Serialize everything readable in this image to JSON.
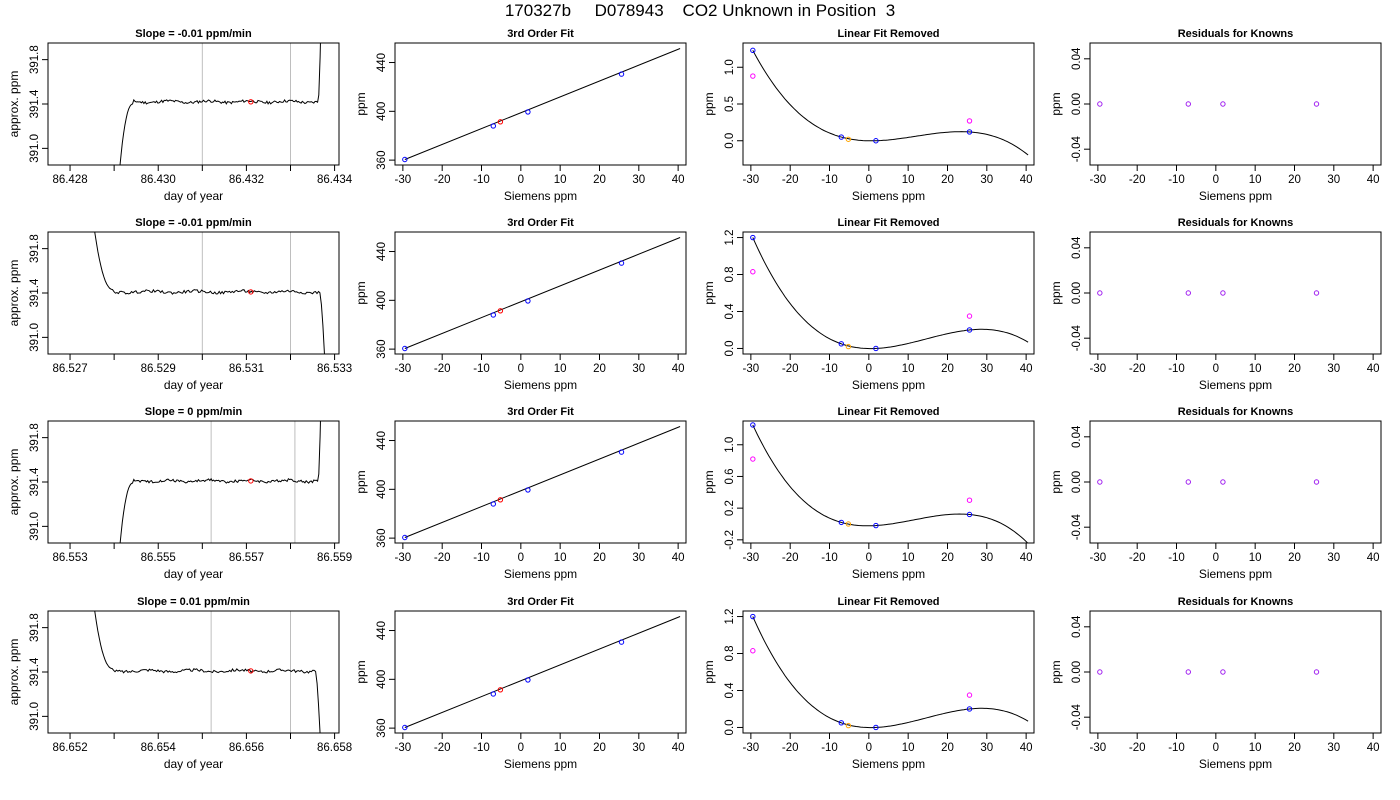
{
  "page_title": "170327b     D078943    CO2 Unknown in Position  3",
  "colors": {
    "trace": "#000000",
    "marker_lines": "#bebebe",
    "point_red": "#ff0000",
    "point_blue": "#0000ff",
    "point_magenta": "#ff00ff",
    "point_orange": "#ffa500",
    "point_purple": "#a020f0"
  },
  "chart_data": [
    {
      "type": "line",
      "row": 1,
      "col": 1,
      "title": "Slope =  -0.01  ppm/min",
      "xlabel": "day of year",
      "ylabel": "approx. ppm",
      "xlim": [
        86.4275,
        86.4341
      ],
      "ylim": [
        390.85,
        391.95
      ],
      "xticks": [
        "86.428",
        "86.430",
        "86.432",
        "86.434"
      ],
      "xtick_values": [
        86.428,
        86.43,
        86.432,
        86.434
      ],
      "yticks": [
        "391.0",
        "391.4",
        "391.8"
      ],
      "ytick_values": [
        391.0,
        391.4,
        391.8
      ],
      "minor_xticks": [
        86.429,
        86.431,
        86.433
      ],
      "vlines": [
        86.431,
        86.433
      ],
      "trace": {
        "start": 86.4291,
        "end": 86.4337,
        "low_start": true,
        "low_end": false,
        "level": 391.42
      },
      "point": {
        "x": 86.4321,
        "y": 391.42
      }
    },
    {
      "type": "line",
      "row": 1,
      "col": 2,
      "title": "3rd Order Fit",
      "xlabel": "Siemens ppm",
      "ylabel": "ppm",
      "xlim": [
        -32,
        42
      ],
      "ylim": [
        356,
        456
      ],
      "xticks": [
        "-30",
        "-20",
        "-10",
        "0",
        "10",
        "20",
        "30",
        "40"
      ],
      "xtick_values": [
        -30,
        -20,
        -10,
        0,
        10,
        20,
        30,
        40
      ],
      "yticks": [
        "360",
        "400",
        "440"
      ],
      "ytick_values": [
        360,
        400,
        440
      ],
      "fit_line": [
        [
          -29.5,
          360.5
        ],
        [
          40.5,
          451.5
        ]
      ],
      "knowns": [
        {
          "x": -29.5,
          "y": 360.5
        },
        {
          "x": -7,
          "y": 388
        },
        {
          "x": 1.8,
          "y": 399.5
        },
        {
          "x": 25.6,
          "y": 430.5
        }
      ],
      "unknown": {
        "x": -5.2,
        "y": 391.4
      }
    },
    {
      "type": "line",
      "row": 1,
      "col": 3,
      "title": "Linear Fit Removed",
      "xlabel": "Siemens ppm",
      "ylabel": "ppm",
      "xlim": [
        -32,
        42
      ],
      "ylim": [
        -0.33,
        1.33
      ],
      "xticks": [
        "-30",
        "-20",
        "-10",
        "0",
        "10",
        "20",
        "30",
        "40"
      ],
      "xtick_values": [
        -30,
        -20,
        -10,
        0,
        10,
        20,
        30,
        40
      ],
      "yticks": [
        "0.0",
        "0.5",
        "1.0"
      ],
      "ytick_values": [
        0,
        0.5,
        1.0
      ],
      "curve_points": [
        [
          -29.5,
          1.23
        ],
        [
          -7,
          0.05
        ],
        [
          1.8,
          0.0
        ],
        [
          25.6,
          0.12
        ]
      ],
      "curve_end": 40.5,
      "knowns": [
        {
          "x": -29.5,
          "y": 1.23
        },
        {
          "x": -7,
          "y": 0.05
        },
        {
          "x": 1.8,
          "y": 0.0
        },
        {
          "x": 25.6,
          "y": 0.12
        }
      ],
      "open_points": [
        {
          "x": -29.5,
          "y": 0.88
        },
        {
          "x": 25.6,
          "y": 0.27
        }
      ],
      "unknown": {
        "x": -5.2,
        "y": 0.02
      }
    },
    {
      "type": "scatter",
      "row": 1,
      "col": 4,
      "title": "Residuals for Knowns",
      "xlabel": "Siemens ppm",
      "ylabel": "ppm",
      "xlim": [
        -32,
        42
      ],
      "ylim": [
        -0.054,
        0.054
      ],
      "xticks": [
        "-30",
        "-20",
        "-10",
        "0",
        "10",
        "20",
        "30",
        "40"
      ],
      "xtick_values": [
        -30,
        -20,
        -10,
        0,
        10,
        20,
        30,
        40
      ],
      "yticks": [
        "-0.04",
        "0.00",
        "0.04"
      ],
      "ytick_values": [
        -0.04,
        0,
        0.04
      ],
      "points": [
        {
          "x": -29.5,
          "y": 0
        },
        {
          "x": -7,
          "y": 0
        },
        {
          "x": 1.8,
          "y": 0
        },
        {
          "x": 25.6,
          "y": 0
        }
      ]
    },
    {
      "type": "line",
      "row": 2,
      "col": 1,
      "title": "Slope =  -0.01  ppm/min",
      "xlabel": "day of year",
      "ylabel": "approx. ppm",
      "xlim": [
        86.5265,
        86.5331
      ],
      "ylim": [
        390.85,
        391.95
      ],
      "xticks": [
        "86.527",
        "86.529",
        "86.531",
        "86.533"
      ],
      "xtick_values": [
        86.527,
        86.529,
        86.531,
        86.533
      ],
      "yticks": [
        "391.0",
        "391.4",
        "391.8"
      ],
      "ytick_values": [
        391.0,
        391.4,
        391.8
      ],
      "minor_xticks": [
        86.528,
        86.53,
        86.532
      ],
      "vlines": [
        86.53,
        86.532
      ],
      "trace": {
        "start": 86.5275,
        "end": 86.5328,
        "low_start": false,
        "low_end": true,
        "level": 391.41
      },
      "point": {
        "x": 86.5311,
        "y": 391.41
      }
    },
    {
      "type": "line",
      "row": 2,
      "col": 2,
      "title": "3rd Order Fit",
      "xlabel": "Siemens ppm",
      "ylabel": "ppm",
      "xlim": [
        -32,
        42
      ],
      "ylim": [
        356,
        456
      ],
      "xticks": [
        "-30",
        "-20",
        "-10",
        "0",
        "10",
        "20",
        "30",
        "40"
      ],
      "xtick_values": [
        -30,
        -20,
        -10,
        0,
        10,
        20,
        30,
        40
      ],
      "yticks": [
        "360",
        "400",
        "440"
      ],
      "ytick_values": [
        360,
        400,
        440
      ],
      "fit_line": [
        [
          -29.5,
          360.5
        ],
        [
          40.5,
          451.5
        ]
      ],
      "knowns": [
        {
          "x": -29.5,
          "y": 360.5
        },
        {
          "x": -7,
          "y": 388
        },
        {
          "x": 1.8,
          "y": 399.5
        },
        {
          "x": 25.6,
          "y": 430.5
        }
      ],
      "unknown": {
        "x": -5.2,
        "y": 391.4
      }
    },
    {
      "type": "line",
      "row": 2,
      "col": 3,
      "title": "Linear Fit Removed",
      "xlabel": "Siemens ppm",
      "ylabel": "ppm",
      "xlim": [
        -32,
        42
      ],
      "ylim": [
        -0.06,
        1.26
      ],
      "xticks": [
        "-30",
        "-20",
        "-10",
        "0",
        "10",
        "20",
        "30",
        "40"
      ],
      "xtick_values": [
        -30,
        -20,
        -10,
        0,
        10,
        20,
        30,
        40
      ],
      "yticks": [
        "0.0",
        "0.4",
        "0.8",
        "1.2"
      ],
      "ytick_values": [
        0,
        0.4,
        0.8,
        1.2
      ],
      "curve_points": [
        [
          -29.5,
          1.2
        ],
        [
          -7,
          0.05
        ],
        [
          1.8,
          0.0
        ],
        [
          25.6,
          0.2
        ]
      ],
      "curve_end": 40.5,
      "knowns": [
        {
          "x": -29.5,
          "y": 1.2
        },
        {
          "x": -7,
          "y": 0.05
        },
        {
          "x": 1.8,
          "y": 0.0
        },
        {
          "x": 25.6,
          "y": 0.2
        }
      ],
      "open_points": [
        {
          "x": -29.5,
          "y": 0.83
        },
        {
          "x": 25.6,
          "y": 0.35
        }
      ],
      "unknown": {
        "x": -5.2,
        "y": 0.02
      }
    },
    {
      "type": "scatter",
      "row": 2,
      "col": 4,
      "title": "Residuals for Knowns",
      "xlabel": "Siemens ppm",
      "ylabel": "ppm",
      "xlim": [
        -32,
        42
      ],
      "ylim": [
        -0.054,
        0.054
      ],
      "xticks": [
        "-30",
        "-20",
        "-10",
        "0",
        "10",
        "20",
        "30",
        "40"
      ],
      "xtick_values": [
        -30,
        -20,
        -10,
        0,
        10,
        20,
        30,
        40
      ],
      "yticks": [
        "-0.04",
        "0.00",
        "0.04"
      ],
      "ytick_values": [
        -0.04,
        0,
        0.04
      ],
      "points": [
        {
          "x": -29.5,
          "y": 0
        },
        {
          "x": -7,
          "y": 0
        },
        {
          "x": 1.8,
          "y": 0
        },
        {
          "x": 25.6,
          "y": 0
        }
      ]
    },
    {
      "type": "line",
      "row": 3,
      "col": 1,
      "title": "Slope =  0  ppm/min",
      "xlabel": "day of year",
      "ylabel": "approx. ppm",
      "xlim": [
        86.5525,
        86.5591
      ],
      "ylim": [
        390.85,
        391.95
      ],
      "xticks": [
        "86.553",
        "86.555",
        "86.557",
        "86.559"
      ],
      "xtick_values": [
        86.553,
        86.555,
        86.557,
        86.559
      ],
      "yticks": [
        "391.0",
        "391.4",
        "391.8"
      ],
      "ytick_values": [
        391.0,
        391.4,
        391.8
      ],
      "minor_xticks": [
        86.554,
        86.556,
        86.558
      ],
      "vlines": [
        86.5562,
        86.5581
      ],
      "trace": {
        "start": 86.5541,
        "end": 86.5587,
        "low_start": true,
        "low_end": false,
        "level": 391.41
      },
      "point": {
        "x": 86.5571,
        "y": 391.41
      }
    },
    {
      "type": "line",
      "row": 3,
      "col": 2,
      "title": "3rd Order Fit",
      "xlabel": "Siemens ppm",
      "ylabel": "ppm",
      "xlim": [
        -32,
        42
      ],
      "ylim": [
        356,
        456
      ],
      "xticks": [
        "-30",
        "-20",
        "-10",
        "0",
        "10",
        "20",
        "30",
        "40"
      ],
      "xtick_values": [
        -30,
        -20,
        -10,
        0,
        10,
        20,
        30,
        40
      ],
      "yticks": [
        "360",
        "400",
        "440"
      ],
      "ytick_values": [
        360,
        400,
        440
      ],
      "fit_line": [
        [
          -29.5,
          360.5
        ],
        [
          40.5,
          451.5
        ]
      ],
      "knowns": [
        {
          "x": -29.5,
          "y": 360.5
        },
        {
          "x": -7,
          "y": 388
        },
        {
          "x": 1.8,
          "y": 399.5
        },
        {
          "x": 25.6,
          "y": 430.5
        }
      ],
      "unknown": {
        "x": -5.2,
        "y": 391.4
      }
    },
    {
      "type": "line",
      "row": 3,
      "col": 3,
      "title": "Linear Fit Removed",
      "xlabel": "Siemens ppm",
      "ylabel": "ppm",
      "xlim": [
        -32,
        42
      ],
      "ylim": [
        -0.24,
        1.3
      ],
      "xticks": [
        "-30",
        "-20",
        "-10",
        "0",
        "10",
        "20",
        "30",
        "40"
      ],
      "xtick_values": [
        -30,
        -20,
        -10,
        0,
        10,
        20,
        30,
        40
      ],
      "yticks": [
        "-0.2",
        "0.2",
        "0.6",
        "1.0"
      ],
      "ytick_values": [
        -0.2,
        0.2,
        0.6,
        1.0
      ],
      "curve_points": [
        [
          -29.5,
          1.25
        ],
        [
          -7,
          0.02
        ],
        [
          1.8,
          -0.02
        ],
        [
          25.6,
          0.12
        ]
      ],
      "curve_end": 40.5,
      "knowns": [
        {
          "x": -29.5,
          "y": 1.25
        },
        {
          "x": -7,
          "y": 0.02
        },
        {
          "x": 1.8,
          "y": -0.02
        },
        {
          "x": 25.6,
          "y": 0.12
        }
      ],
      "open_points": [
        {
          "x": -29.5,
          "y": 0.82
        },
        {
          "x": 25.6,
          "y": 0.3
        }
      ],
      "unknown": {
        "x": -5.2,
        "y": 0.0
      }
    },
    {
      "type": "scatter",
      "row": 3,
      "col": 4,
      "title": "Residuals for Knowns",
      "xlabel": "Siemens ppm",
      "ylabel": "ppm",
      "xlim": [
        -32,
        42
      ],
      "ylim": [
        -0.054,
        0.054
      ],
      "xticks": [
        "-30",
        "-20",
        "-10",
        "0",
        "10",
        "20",
        "30",
        "40"
      ],
      "xtick_values": [
        -30,
        -20,
        -10,
        0,
        10,
        20,
        30,
        40
      ],
      "yticks": [
        "-0.04",
        "0.00",
        "0.04"
      ],
      "ytick_values": [
        -0.04,
        0,
        0.04
      ],
      "points": [
        {
          "x": -29.5,
          "y": 0
        },
        {
          "x": -7,
          "y": 0
        },
        {
          "x": 1.8,
          "y": 0
        },
        {
          "x": 25.6,
          "y": 0
        }
      ]
    },
    {
      "type": "line",
      "row": 4,
      "col": 1,
      "title": "Slope =  0.01  ppm/min",
      "xlabel": "day of year",
      "ylabel": "approx. ppm",
      "xlim": [
        86.6515,
        86.6581
      ],
      "ylim": [
        390.85,
        391.95
      ],
      "xticks": [
        "86.652",
        "86.654",
        "86.656",
        "86.658"
      ],
      "xtick_values": [
        86.652,
        86.654,
        86.656,
        86.658
      ],
      "yticks": [
        "391.0",
        "391.4",
        "391.8"
      ],
      "ytick_values": [
        391.0,
        391.4,
        391.8
      ],
      "minor_xticks": [
        86.653,
        86.655,
        86.657
      ],
      "vlines": [
        86.6552,
        86.657
      ],
      "trace": {
        "start": 86.6525,
        "end": 86.6577,
        "low_start": false,
        "low_end": true,
        "level": 391.41
      },
      "point": {
        "x": 86.6561,
        "y": 391.41
      }
    },
    {
      "type": "line",
      "row": 4,
      "col": 2,
      "title": "3rd Order Fit",
      "xlabel": "Siemens ppm",
      "ylabel": "ppm",
      "xlim": [
        -32,
        42
      ],
      "ylim": [
        356,
        456
      ],
      "xticks": [
        "-30",
        "-20",
        "-10",
        "0",
        "10",
        "20",
        "30",
        "40"
      ],
      "xtick_values": [
        -30,
        -20,
        -10,
        0,
        10,
        20,
        30,
        40
      ],
      "yticks": [
        "360",
        "400",
        "440"
      ],
      "ytick_values": [
        360,
        400,
        440
      ],
      "fit_line": [
        [
          -29.5,
          360.5
        ],
        [
          40.5,
          451.5
        ]
      ],
      "knowns": [
        {
          "x": -29.5,
          "y": 360.5
        },
        {
          "x": -7,
          "y": 388
        },
        {
          "x": 1.8,
          "y": 399.5
        },
        {
          "x": 25.6,
          "y": 430.5
        }
      ],
      "unknown": {
        "x": -5.2,
        "y": 391.4
      }
    },
    {
      "type": "line",
      "row": 4,
      "col": 3,
      "title": "Linear Fit Removed",
      "xlabel": "Siemens ppm",
      "ylabel": "ppm",
      "xlim": [
        -32,
        42
      ],
      "ylim": [
        -0.06,
        1.26
      ],
      "xticks": [
        "-30",
        "-20",
        "-10",
        "0",
        "10",
        "20",
        "30",
        "40"
      ],
      "xtick_values": [
        -30,
        -20,
        -10,
        0,
        10,
        20,
        30,
        40
      ],
      "yticks": [
        "0.0",
        "0.4",
        "0.8",
        "1.2"
      ],
      "ytick_values": [
        0,
        0.4,
        0.8,
        1.2
      ],
      "curve_points": [
        [
          -29.5,
          1.2
        ],
        [
          -7,
          0.05
        ],
        [
          1.8,
          0.0
        ],
        [
          25.6,
          0.2
        ]
      ],
      "curve_end": 40.5,
      "knowns": [
        {
          "x": -29.5,
          "y": 1.2
        },
        {
          "x": -7,
          "y": 0.05
        },
        {
          "x": 1.8,
          "y": 0.0
        },
        {
          "x": 25.6,
          "y": 0.2
        }
      ],
      "open_points": [
        {
          "x": -29.5,
          "y": 0.83
        },
        {
          "x": 25.6,
          "y": 0.35
        }
      ],
      "unknown": {
        "x": -5.2,
        "y": 0.02
      }
    },
    {
      "type": "scatter",
      "row": 4,
      "col": 4,
      "title": "Residuals for Knowns",
      "xlabel": "Siemens ppm",
      "ylabel": "ppm",
      "xlim": [
        -32,
        42
      ],
      "ylim": [
        -0.054,
        0.054
      ],
      "xticks": [
        "-30",
        "-20",
        "-10",
        "0",
        "10",
        "20",
        "30",
        "40"
      ],
      "xtick_values": [
        -30,
        -20,
        -10,
        0,
        10,
        20,
        30,
        40
      ],
      "yticks": [
        "-0.04",
        "0.00",
        "0.04"
      ],
      "ytick_values": [
        -0.04,
        0,
        0.04
      ],
      "points": [
        {
          "x": -29.5,
          "y": 0
        },
        {
          "x": -7,
          "y": 0
        },
        {
          "x": 1.8,
          "y": 0
        },
        {
          "x": 25.6,
          "y": 0
        }
      ]
    }
  ]
}
